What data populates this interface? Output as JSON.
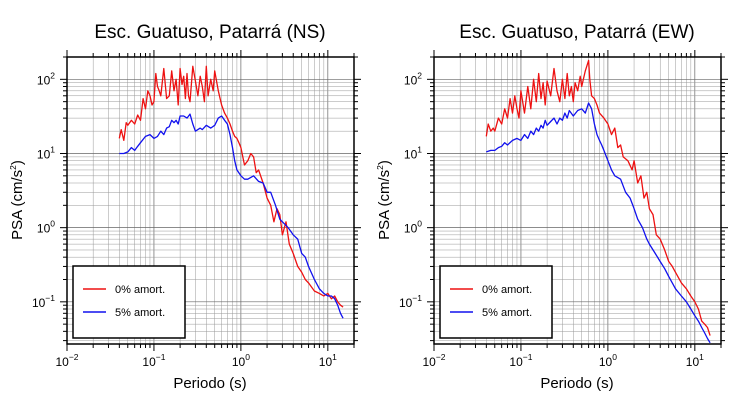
{
  "chart_data": [
    {
      "type": "line",
      "title": "Esc. Guatuso, Patarrá (NS)",
      "xlabel": "Periodo (s)",
      "ylabel": "PSA (cm/s²)",
      "ylabel_main": "PSA (cm/s",
      "ylabel_sup": "2",
      "ylabel_close": ")",
      "xscale": "log",
      "yscale": "log",
      "xlim": [
        0.01,
        20
      ],
      "ylim": [
        0.027,
        200
      ],
      "grid": true,
      "legend_position": "bottom-left",
      "x_ticks": [
        {
          "base": "10",
          "exp": "−2"
        },
        {
          "base": "10",
          "exp": "−1"
        },
        {
          "base": "10",
          "exp": "0"
        },
        {
          "base": "10",
          "exp": "1"
        }
      ],
      "y_ticks": [
        {
          "base": "10",
          "exp": "−1"
        },
        {
          "base": "10",
          "exp": "0"
        },
        {
          "base": "10",
          "exp": "1"
        },
        {
          "base": "10",
          "exp": "2"
        }
      ],
      "series": [
        {
          "name": "0% amort.",
          "color": "#ee1111",
          "x": [
            0.04,
            0.042,
            0.045,
            0.048,
            0.05,
            0.055,
            0.06,
            0.065,
            0.07,
            0.075,
            0.08,
            0.085,
            0.09,
            0.095,
            0.1,
            0.105,
            0.11,
            0.115,
            0.12,
            0.13,
            0.14,
            0.15,
            0.16,
            0.17,
            0.18,
            0.19,
            0.2,
            0.21,
            0.22,
            0.23,
            0.24,
            0.25,
            0.26,
            0.28,
            0.3,
            0.32,
            0.34,
            0.36,
            0.38,
            0.4,
            0.42,
            0.45,
            0.48,
            0.5,
            0.55,
            0.6,
            0.65,
            0.7,
            0.75,
            0.8,
            0.85,
            0.9,
            0.95,
            1.0,
            1.1,
            1.2,
            1.3,
            1.4,
            1.5,
            1.6,
            1.8,
            2.0,
            2.2,
            2.4,
            2.6,
            2.8,
            3.0,
            3.3,
            3.6,
            4.0,
            4.5,
            5.0,
            5.5,
            6.0,
            7.0,
            8.0,
            9.0,
            10.0,
            11.0,
            12.0,
            13.0,
            14.0,
            15.0
          ],
          "values": [
            16,
            21,
            15,
            26,
            24,
            28,
            25,
            33,
            28,
            55,
            40,
            70,
            60,
            45,
            50,
            120,
            80,
            70,
            60,
            140,
            55,
            60,
            130,
            70,
            100,
            45,
            140,
            85,
            110,
            55,
            120,
            60,
            50,
            150,
            95,
            60,
            110,
            80,
            50,
            150,
            60,
            100,
            70,
            130,
            70,
            45,
            35,
            30,
            25,
            20,
            17,
            16,
            14,
            12,
            7,
            8,
            10,
            9,
            5.5,
            6,
            4,
            2.5,
            2,
            1.2,
            1.8,
            1.5,
            0.8,
            1.2,
            0.6,
            0.45,
            0.3,
            0.25,
            0.2,
            0.18,
            0.14,
            0.13,
            0.12,
            0.13,
            0.11,
            0.12,
            0.1,
            0.09,
            0.085
          ]
        },
        {
          "name": "5% amort.",
          "color": "#1111ee",
          "x": [
            0.04,
            0.045,
            0.05,
            0.055,
            0.06,
            0.065,
            0.07,
            0.08,
            0.09,
            0.1,
            0.11,
            0.12,
            0.13,
            0.14,
            0.15,
            0.16,
            0.17,
            0.18,
            0.19,
            0.2,
            0.22,
            0.24,
            0.26,
            0.28,
            0.3,
            0.32,
            0.34,
            0.36,
            0.4,
            0.45,
            0.5,
            0.55,
            0.6,
            0.65,
            0.7,
            0.75,
            0.8,
            0.85,
            0.9,
            1.0,
            1.1,
            1.2,
            1.4,
            1.6,
            1.8,
            2.0,
            2.2,
            2.5,
            2.8,
            3.0,
            3.5,
            4.0,
            4.5,
            5.0,
            5.5,
            6.0,
            7.0,
            8.0,
            9.0,
            10.0,
            11.0,
            12.0,
            13.0,
            14.0,
            15.0
          ],
          "values": [
            10,
            10,
            10.5,
            12,
            11,
            12.5,
            14,
            17,
            18,
            16,
            17,
            20,
            18,
            22,
            23,
            28,
            26,
            28,
            25,
            32,
            32,
            30,
            34,
            25,
            20,
            21,
            22,
            21,
            24,
            22,
            24,
            30,
            32,
            28,
            25,
            18,
            12,
            8,
            6,
            5,
            4.5,
            4.5,
            5,
            4.2,
            4,
            3,
            3,
            2,
            1.3,
            1.2,
            1.0,
            0.8,
            0.7,
            0.45,
            0.4,
            0.3,
            0.2,
            0.15,
            0.13,
            0.12,
            0.12,
            0.11,
            0.09,
            0.07,
            0.06
          ]
        }
      ]
    },
    {
      "type": "line",
      "title": "Esc. Guatuso, Patarrá (EW)",
      "xlabel": "Periodo (s)",
      "ylabel": "PSA (cm/s²)",
      "ylabel_main": "PSA (cm/s",
      "ylabel_sup": "2",
      "ylabel_close": ")",
      "xscale": "log",
      "yscale": "log",
      "xlim": [
        0.01,
        20
      ],
      "ylim": [
        0.027,
        200
      ],
      "grid": true,
      "legend_position": "bottom-left",
      "x_ticks": [
        {
          "base": "10",
          "exp": "−2"
        },
        {
          "base": "10",
          "exp": "−1"
        },
        {
          "base": "10",
          "exp": "0"
        },
        {
          "base": "10",
          "exp": "1"
        }
      ],
      "y_ticks": [
        {
          "base": "10",
          "exp": "−1"
        },
        {
          "base": "10",
          "exp": "0"
        },
        {
          "base": "10",
          "exp": "1"
        },
        {
          "base": "10",
          "exp": "2"
        }
      ],
      "series": [
        {
          "name": "0% amort.",
          "color": "#ee1111",
          "x": [
            0.04,
            0.042,
            0.045,
            0.048,
            0.05,
            0.055,
            0.06,
            0.065,
            0.07,
            0.075,
            0.08,
            0.085,
            0.09,
            0.095,
            0.1,
            0.11,
            0.12,
            0.13,
            0.14,
            0.15,
            0.16,
            0.17,
            0.18,
            0.19,
            0.2,
            0.22,
            0.24,
            0.26,
            0.28,
            0.3,
            0.32,
            0.34,
            0.36,
            0.38,
            0.4,
            0.42,
            0.45,
            0.48,
            0.5,
            0.55,
            0.6,
            0.62,
            0.65,
            0.7,
            0.75,
            0.8,
            0.9,
            1.0,
            1.1,
            1.2,
            1.3,
            1.4,
            1.5,
            1.7,
            1.9,
            2.0,
            2.2,
            2.4,
            2.6,
            2.8,
            3.0,
            3.3,
            3.6,
            4.0,
            4.5,
            5.0,
            5.5,
            6.0,
            7.0,
            8.0,
            9.0,
            10.0,
            11.0,
            12.0,
            13.0,
            14.0,
            15.0
          ],
          "values": [
            17,
            25,
            20,
            22,
            20,
            30,
            25,
            40,
            30,
            55,
            35,
            60,
            40,
            30,
            70,
            35,
            80,
            40,
            100,
            50,
            120,
            55,
            90,
            45,
            95,
            60,
            140,
            70,
            50,
            100,
            55,
            120,
            60,
            80,
            50,
            90,
            70,
            110,
            80,
            130,
            180,
            100,
            60,
            55,
            45,
            35,
            30,
            25,
            18,
            22,
            12,
            13,
            9,
            8,
            6,
            8,
            4,
            5,
            2.5,
            3,
            1.8,
            1.5,
            0.8,
            0.7,
            0.5,
            0.35,
            0.3,
            0.25,
            0.18,
            0.15,
            0.12,
            0.1,
            0.08,
            0.055,
            0.05,
            0.045,
            0.035
          ]
        },
        {
          "name": "5% amort.",
          "color": "#1111ee",
          "x": [
            0.04,
            0.045,
            0.05,
            0.055,
            0.06,
            0.065,
            0.07,
            0.08,
            0.09,
            0.1,
            0.11,
            0.12,
            0.13,
            0.14,
            0.15,
            0.16,
            0.17,
            0.18,
            0.19,
            0.2,
            0.22,
            0.24,
            0.26,
            0.28,
            0.3,
            0.32,
            0.34,
            0.36,
            0.4,
            0.45,
            0.5,
            0.55,
            0.6,
            0.65,
            0.7,
            0.75,
            0.8,
            0.85,
            0.9,
            1.0,
            1.1,
            1.2,
            1.4,
            1.6,
            1.8,
            2.0,
            2.2,
            2.5,
            2.8,
            3.0,
            3.5,
            4.0,
            4.5,
            5.0,
            5.5,
            6.0,
            7.0,
            8.0,
            9.0,
            10.0,
            11.0,
            12.0,
            13.0,
            14.0,
            15.0
          ],
          "values": [
            10.5,
            11,
            11,
            12,
            12.5,
            14,
            13,
            15,
            16,
            15,
            18,
            16,
            20,
            18,
            22,
            20,
            24,
            22,
            28,
            24,
            27,
            30,
            25,
            30,
            28,
            35,
            30,
            38,
            32,
            38,
            40,
            35,
            48,
            40,
            25,
            18,
            15,
            13,
            11,
            8,
            6,
            5,
            4.5,
            3,
            2.5,
            1.8,
            1.3,
            1.0,
            0.7,
            0.6,
            0.45,
            0.35,
            0.28,
            0.22,
            0.18,
            0.15,
            0.12,
            0.1,
            0.08,
            0.065,
            0.055,
            0.045,
            0.038,
            0.032,
            0.028
          ]
        }
      ]
    }
  ]
}
